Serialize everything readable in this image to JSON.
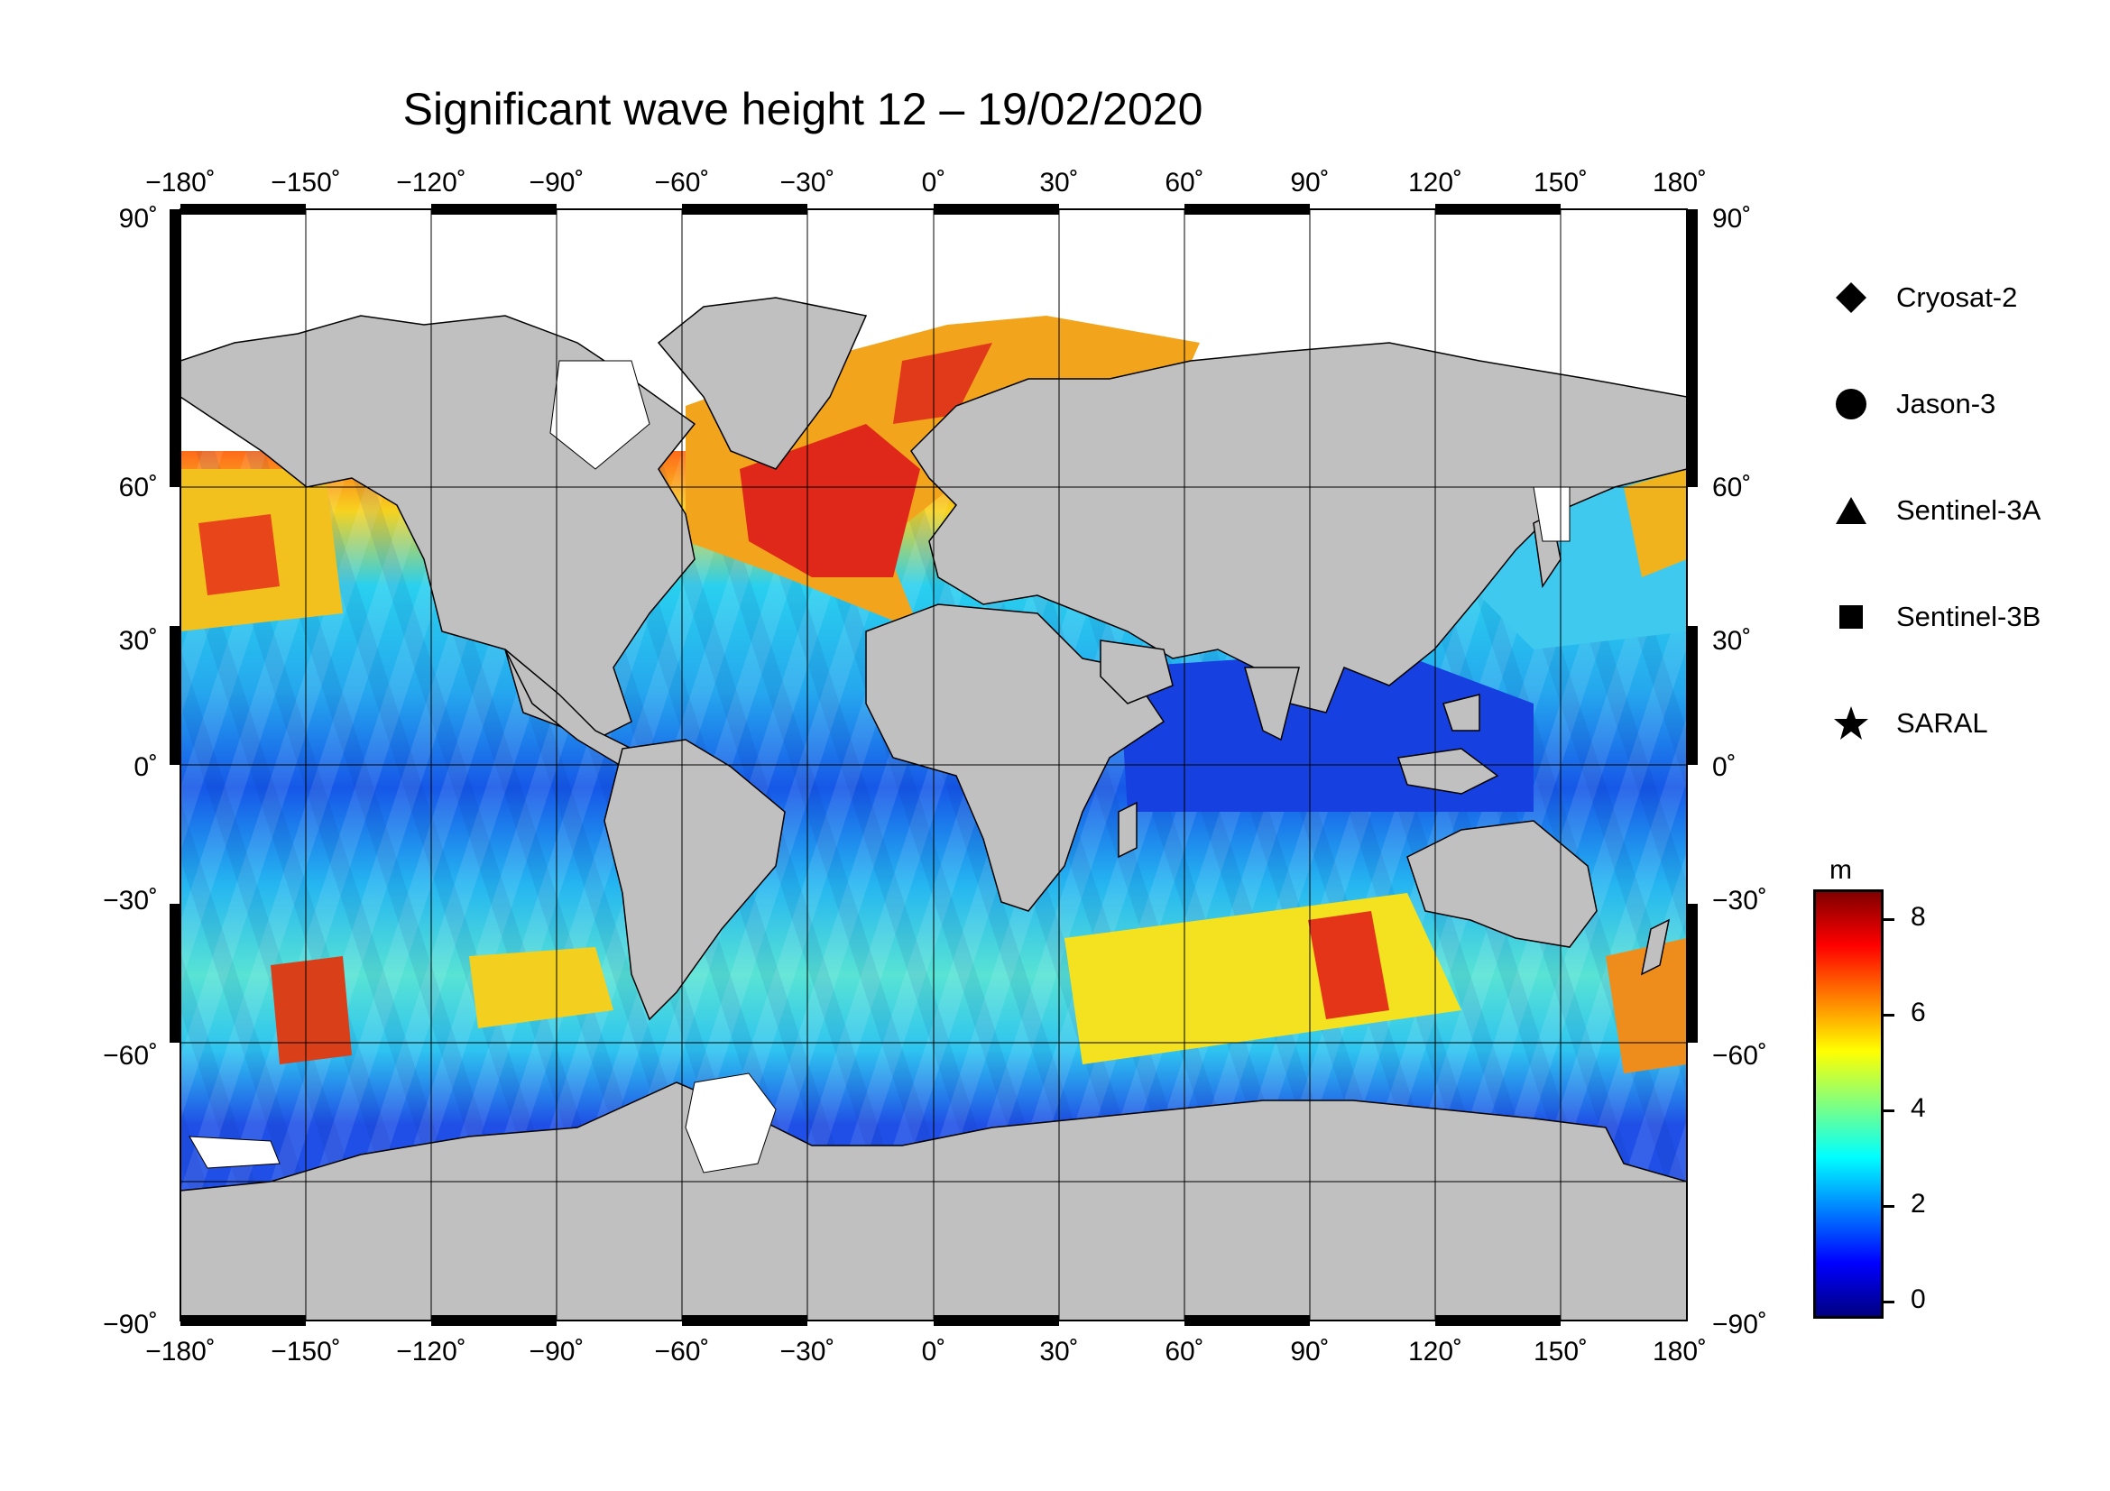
{
  "title": "Significant wave height 12 – 19/02/2020",
  "map": {
    "lon_ticks": [
      "−180˚",
      "−150˚",
      "−120˚",
      "−90˚",
      "−60˚",
      "−30˚",
      "0˚",
      "30˚",
      "60˚",
      "90˚",
      "120˚",
      "150˚",
      "180˚"
    ],
    "lat_ticks": [
      "90˚",
      "60˚",
      "30˚",
      "0˚",
      "−30˚",
      "−60˚",
      "−90˚"
    ],
    "land_color": "#c0c0c0",
    "ice_color": "#ffffff",
    "grid": true
  },
  "legend": [
    {
      "symbol": "diamond-icon",
      "label": "Cryosat-2"
    },
    {
      "symbol": "circle-icon",
      "label": "Jason-3"
    },
    {
      "symbol": "triangle-icon",
      "label": "Sentinel-3A"
    },
    {
      "symbol": "square-icon",
      "label": "Sentinel-3B"
    },
    {
      "symbol": "star-icon",
      "label": "SARAL"
    }
  ],
  "colorbar": {
    "unit": "m",
    "labels": [
      "8",
      "6",
      "4",
      "2",
      "0"
    ],
    "min": -0.8,
    "max": 8.6,
    "colors": [
      "#000080",
      "#0000ff",
      "#0080ff",
      "#00ffff",
      "#80ff80",
      "#ffff00",
      "#ff8000",
      "#ff0000",
      "#800000"
    ]
  }
}
